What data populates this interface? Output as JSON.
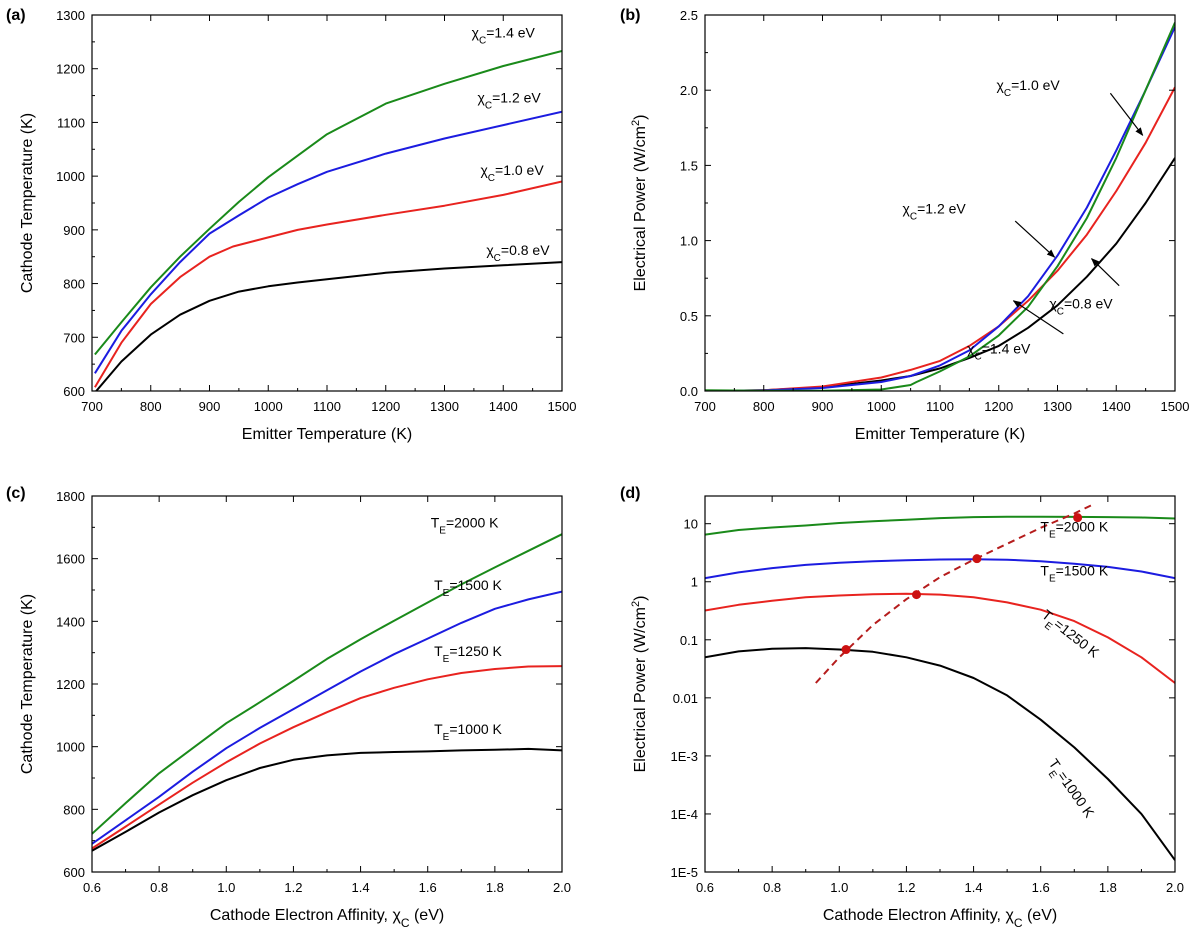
{
  "chart_data": [
    {
      "panel": "(a)",
      "type": "line",
      "xlabel": "Emitter Temperature (K)",
      "ylabel": "Cathode Temperature (K)",
      "xlim": [
        700,
        1500
      ],
      "ylim": [
        600,
        1300
      ],
      "xticks": [
        700,
        800,
        900,
        1000,
        1100,
        1200,
        1300,
        1400,
        1500
      ],
      "yticks": [
        600,
        700,
        800,
        900,
        1000,
        1100,
        1200,
        1300
      ],
      "yscale": "linear",
      "series": [
        {
          "name": "χC=0.8 eV",
          "color": "#000000",
          "x": [
            705,
            750,
            800,
            850,
            900,
            950,
            1000,
            1050,
            1100,
            1200,
            1300,
            1400,
            1500
          ],
          "values": [
            597,
            655,
            705,
            742,
            768,
            785,
            795,
            802,
            808,
            820,
            828,
            834,
            840
          ]
        },
        {
          "name": "χC=1.0 eV",
          "color": "#e8231f",
          "x": [
            705,
            750,
            800,
            850,
            900,
            940,
            1000,
            1050,
            1100,
            1200,
            1300,
            1400,
            1500
          ],
          "values": [
            607,
            690,
            762,
            812,
            850,
            869,
            886,
            900,
            910,
            928,
            945,
            965,
            990
          ]
        },
        {
          "name": "χC=1.2 eV",
          "color": "#1c1ce0",
          "x": [
            705,
            750,
            800,
            850,
            900,
            950,
            1000,
            1050,
            1100,
            1200,
            1300,
            1400,
            1500
          ],
          "values": [
            633,
            712,
            780,
            840,
            893,
            927,
            960,
            985,
            1008,
            1042,
            1070,
            1095,
            1120
          ]
        },
        {
          "name": "χC=1.4 eV",
          "color": "#1a8a1a",
          "x": [
            705,
            750,
            800,
            850,
            900,
            950,
            1000,
            1050,
            1100,
            1200,
            1300,
            1400,
            1500
          ],
          "values": [
            668,
            728,
            793,
            850,
            902,
            952,
            998,
            1038,
            1078,
            1135,
            1172,
            1205,
            1233
          ]
        }
      ],
      "annotations": [
        {
          "text": "χ",
          "sub": "C",
          "rest": "=1.4 eV",
          "series": "χC=1.4 eV",
          "x": 1400,
          "y": 1258
        },
        {
          "text": "χ",
          "sub": "C",
          "rest": "=1.2 eV",
          "series": "χC=1.2 eV",
          "x": 1410,
          "y": 1137
        },
        {
          "text": "χ",
          "sub": "C",
          "rest": "=1.0 eV",
          "series": "χC=1.0 eV",
          "x": 1415,
          "y": 1002
        },
        {
          "text": "χ",
          "sub": "C",
          "rest": "=0.8 eV",
          "series": "χC=0.8 eV",
          "x": 1425,
          "y": 853
        }
      ]
    },
    {
      "panel": "(b)",
      "type": "line",
      "xlabel": "Emitter Temperature (K)",
      "ylabel": "Electrical Power (W/cm²)",
      "xlim": [
        700,
        1500
      ],
      "ylim": [
        0,
        2.5
      ],
      "xticks": [
        700,
        800,
        900,
        1000,
        1100,
        1200,
        1300,
        1400,
        1500
      ],
      "yticks": [
        0.0,
        0.5,
        1.0,
        1.5,
        2.0,
        2.5
      ],
      "ytick_labels": [
        "0.0",
        "0.5",
        "1.0",
        "1.5",
        "2.0",
        "2.5"
      ],
      "yscale": "linear",
      "series": [
        {
          "name": "χC=0.8 eV",
          "color": "#000000",
          "x": [
            700,
            800,
            900,
            1000,
            1050,
            1100,
            1150,
            1200,
            1250,
            1300,
            1350,
            1400,
            1450,
            1500
          ],
          "values": [
            0.0,
            0.005,
            0.025,
            0.07,
            0.1,
            0.15,
            0.22,
            0.3,
            0.42,
            0.57,
            0.76,
            0.98,
            1.25,
            1.55
          ]
        },
        {
          "name": "χC=1.0 eV",
          "color": "#e8231f",
          "x": [
            700,
            800,
            900,
            1000,
            1050,
            1100,
            1150,
            1200,
            1250,
            1300,
            1350,
            1400,
            1450,
            1500
          ],
          "values": [
            0.0,
            0.005,
            0.03,
            0.09,
            0.14,
            0.2,
            0.3,
            0.43,
            0.6,
            0.8,
            1.04,
            1.33,
            1.65,
            2.02
          ]
        },
        {
          "name": "χC=1.2 eV",
          "color": "#1c1ce0",
          "x": [
            700,
            800,
            900,
            1000,
            1050,
            1100,
            1150,
            1200,
            1250,
            1300,
            1350,
            1400,
            1450,
            1500
          ],
          "values": [
            0.0,
            0.004,
            0.02,
            0.06,
            0.1,
            0.17,
            0.27,
            0.43,
            0.63,
            0.9,
            1.22,
            1.6,
            2.0,
            2.42
          ]
        },
        {
          "name": "χC=1.4 eV",
          "color": "#1a8a1a",
          "x": [
            700,
            800,
            900,
            1000,
            1050,
            1060,
            1100,
            1150,
            1200,
            1250,
            1300,
            1350,
            1400,
            1450,
            1500
          ],
          "values": [
            0.005,
            0.002,
            0.002,
            0.01,
            0.04,
            0.06,
            0.13,
            0.23,
            0.37,
            0.56,
            0.83,
            1.15,
            1.55,
            2.0,
            2.45
          ]
        }
      ],
      "annotations": [
        {
          "text": "χ",
          "sub": "C",
          "rest": "=1.0 eV",
          "series": "χC=1.0 eV",
          "label_at": [
            1250,
            2.0
          ],
          "arrow_from": [
            1390,
            1.98
          ],
          "arrow_to": [
            1445,
            1.7
          ]
        },
        {
          "text": "χ",
          "sub": "C",
          "rest": "=1.2 eV",
          "series": "χC=1.2 eV",
          "label_at": [
            1090,
            1.18
          ],
          "arrow_from": [
            1228,
            1.13
          ],
          "arrow_to": [
            1295,
            0.89
          ]
        },
        {
          "text": "χ",
          "sub": "C",
          "rest": "=0.8 eV",
          "series": "χC=0.8 eV",
          "label_at": [
            1340,
            0.55
          ],
          "arrow_from": [
            1405,
            0.7
          ],
          "arrow_to": [
            1358,
            0.88
          ]
        },
        {
          "text": "χ",
          "sub": "C",
          "rest": "=1.4 eV",
          "series": "χC=1.4 eV",
          "label_at": [
            1200,
            0.25
          ],
          "arrow_from": [
            1310,
            0.38
          ],
          "arrow_to": [
            1225,
            0.6
          ]
        }
      ]
    },
    {
      "panel": "(c)",
      "type": "line",
      "xlabel": "Cathode Electron Affinity, χC (eV)",
      "ylabel": "Cathode Temperature (K)",
      "xlim": [
        0.6,
        2.0
      ],
      "ylim": [
        600,
        1800
      ],
      "xticks": [
        0.6,
        0.8,
        1.0,
        1.2,
        1.4,
        1.6,
        1.8,
        2.0
      ],
      "xtick_labels": [
        "0.6",
        "0.8",
        "1.0",
        "1.2",
        "1.4",
        "1.6",
        "1.8",
        "2.0"
      ],
      "yticks": [
        600,
        800,
        1000,
        1200,
        1400,
        1600,
        1800
      ],
      "yscale": "linear",
      "series": [
        {
          "name": "TE=1000 K",
          "color": "#000000",
          "x": [
            0.6,
            0.7,
            0.8,
            0.9,
            1.0,
            1.1,
            1.2,
            1.3,
            1.4,
            1.5,
            1.6,
            1.7,
            1.8,
            1.9,
            2.0
          ],
          "values": [
            668,
            728,
            790,
            845,
            893,
            932,
            958,
            972,
            980,
            983,
            985,
            988,
            990,
            993,
            988
          ]
        },
        {
          "name": "TE=1250 K",
          "color": "#e8231f",
          "x": [
            0.6,
            0.7,
            0.8,
            0.9,
            1.0,
            1.1,
            1.2,
            1.3,
            1.4,
            1.5,
            1.6,
            1.7,
            1.8,
            1.9,
            2.0
          ],
          "values": [
            675,
            745,
            815,
            885,
            950,
            1010,
            1062,
            1110,
            1155,
            1188,
            1215,
            1235,
            1248,
            1256,
            1257
          ]
        },
        {
          "name": "TE=1500 K",
          "color": "#1c1ce0",
          "x": [
            0.6,
            0.7,
            0.8,
            0.9,
            1.0,
            1.1,
            1.2,
            1.3,
            1.4,
            1.5,
            1.6,
            1.7,
            1.8,
            1.9,
            2.0
          ],
          "values": [
            690,
            765,
            840,
            920,
            995,
            1060,
            1120,
            1180,
            1240,
            1295,
            1345,
            1395,
            1440,
            1470,
            1495
          ]
        },
        {
          "name": "TE=2000 K",
          "color": "#1a8a1a",
          "x": [
            0.6,
            0.7,
            0.8,
            0.9,
            1.0,
            1.1,
            1.2,
            1.3,
            1.4,
            1.5,
            1.6,
            1.7,
            1.8,
            1.9,
            2.0
          ],
          "values": [
            722,
            820,
            915,
            995,
            1075,
            1142,
            1210,
            1280,
            1343,
            1402,
            1460,
            1518,
            1572,
            1625,
            1678
          ]
        }
      ],
      "annotations": [
        {
          "text": "T",
          "sub": "E",
          "rest": "=2000 K",
          "series": "TE=2000 K",
          "x": 1.71,
          "y": 1700
        },
        {
          "text": "T",
          "sub": "E",
          "rest": "=1500 K",
          "series": "TE=1500 K",
          "x": 1.72,
          "y": 1500
        },
        {
          "text": "T",
          "sub": "E",
          "rest": "=1250 K",
          "series": "TE=1250 K",
          "x": 1.72,
          "y": 1290
        },
        {
          "text": "T",
          "sub": "E",
          "rest": "=1000 K",
          "series": "TE=1000 K",
          "x": 1.72,
          "y": 1040
        }
      ]
    },
    {
      "panel": "(d)",
      "type": "line",
      "xlabel": "Cathode Electron Affinity, χC (eV)",
      "ylabel": "Electrical Power (W/cm²)",
      "xlim": [
        0.6,
        2.0
      ],
      "ylim": [
        1e-05,
        30
      ],
      "xticks": [
        0.6,
        0.8,
        1.0,
        1.2,
        1.4,
        1.6,
        1.8,
        2.0
      ],
      "xtick_labels": [
        "0.6",
        "0.8",
        "1.0",
        "1.2",
        "1.4",
        "1.6",
        "1.8",
        "2.0"
      ],
      "yticks": [
        1e-05,
        0.0001,
        0.001,
        0.01,
        0.1,
        1,
        10
      ],
      "ytick_labels": [
        "1E-5",
        "1E-4",
        "1E-3",
        "0.01",
        "0.1",
        "1",
        "10"
      ],
      "yscale": "log",
      "series": [
        {
          "name": "TE=2000 K",
          "color": "#1a8a1a",
          "x": [
            0.6,
            0.7,
            0.8,
            0.9,
            1.0,
            1.1,
            1.2,
            1.3,
            1.4,
            1.5,
            1.6,
            1.7,
            1.8,
            1.9,
            2.0
          ],
          "values": [
            6.5,
            7.8,
            8.6,
            9.3,
            10.3,
            11,
            11.7,
            12.5,
            13,
            13.2,
            13.2,
            13.1,
            13,
            12.8,
            12.3
          ]
        },
        {
          "name": "TE=1500 K",
          "color": "#1c1ce0",
          "x": [
            0.6,
            0.7,
            0.8,
            0.9,
            1.0,
            1.1,
            1.2,
            1.3,
            1.4,
            1.5,
            1.6,
            1.7,
            1.8,
            1.9,
            2.0
          ],
          "values": [
            1.15,
            1.45,
            1.72,
            1.95,
            2.12,
            2.25,
            2.35,
            2.42,
            2.45,
            2.4,
            2.25,
            2.05,
            1.8,
            1.5,
            1.15
          ]
        },
        {
          "name": "TE=1250 K",
          "color": "#e8231f",
          "x": [
            0.6,
            0.7,
            0.8,
            0.9,
            1.0,
            1.1,
            1.2,
            1.3,
            1.4,
            1.5,
            1.6,
            1.7,
            1.8,
            1.9,
            2.0
          ],
          "values": [
            0.32,
            0.4,
            0.47,
            0.54,
            0.58,
            0.61,
            0.62,
            0.6,
            0.54,
            0.44,
            0.33,
            0.21,
            0.11,
            0.05,
            0.018
          ]
        },
        {
          "name": "TE=1000 K",
          "color": "#000000",
          "x": [
            0.6,
            0.7,
            0.8,
            0.9,
            1.0,
            1.1,
            1.2,
            1.3,
            1.4,
            1.5,
            1.6,
            1.7,
            1.8,
            1.9,
            2.0
          ],
          "values": [
            0.05,
            0.063,
            0.07,
            0.072,
            0.068,
            0.062,
            0.05,
            0.036,
            0.022,
            0.011,
            0.0042,
            0.0014,
            0.0004,
            0.0001,
            1.6e-05
          ]
        },
        {
          "name": "optimum locus",
          "color": "#b51c1c",
          "dashed": true,
          "x": [
            0.93,
            1.0,
            1.1,
            1.2,
            1.3,
            1.4,
            1.5,
            1.6,
            1.7,
            1.76
          ],
          "values": [
            0.018,
            0.05,
            0.18,
            0.5,
            1.2,
            2.4,
            4.5,
            8.5,
            15,
            22
          ]
        }
      ],
      "markers": [
        {
          "x": 1.02,
          "y": 0.068,
          "color": "#cc1111"
        },
        {
          "x": 1.23,
          "y": 0.6,
          "color": "#cc1111"
        },
        {
          "x": 1.41,
          "y": 2.5,
          "color": "#cc1111"
        },
        {
          "x": 1.71,
          "y": 12.7,
          "color": "#cc1111"
        }
      ],
      "annotations": [
        {
          "text": "T",
          "sub": "E",
          "rest": "=2000 K",
          "series": "TE=2000 K",
          "x": 1.7,
          "y": 7.3,
          "rotate": 0
        },
        {
          "text": "T",
          "sub": "E",
          "rest": "=1500 K",
          "series": "TE=1500 K",
          "x": 1.7,
          "y": 1.28,
          "rotate": 0
        },
        {
          "text": "T",
          "sub": "E",
          "rest": "=1250 K",
          "series": "TE=1250 K",
          "x": 1.68,
          "y": 0.11,
          "rotate": 38
        },
        {
          "text": "T",
          "sub": "E",
          "rest": "=1000 K",
          "series": "TE=1000 K",
          "x": 1.68,
          "y": 0.00025,
          "rotate": 55
        }
      ]
    }
  ]
}
